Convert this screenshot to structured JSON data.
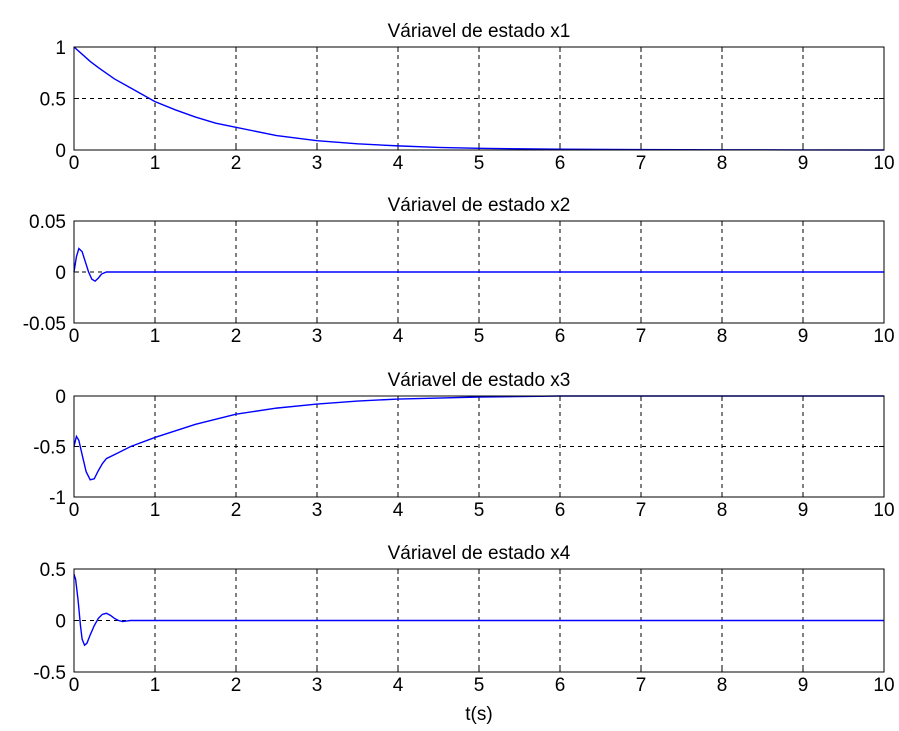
{
  "chart_data": [
    {
      "type": "line",
      "title": "Váriavel de estado x1",
      "xlim": [
        0,
        10
      ],
      "ylim": [
        0,
        1
      ],
      "xticks": [
        "0",
        "1",
        "2",
        "3",
        "4",
        "5",
        "6",
        "7",
        "8",
        "9",
        "10"
      ],
      "yticks": [
        "0",
        "0.5",
        "1"
      ],
      "ytick_values": [
        0,
        0.5,
        1
      ],
      "grid": true,
      "series": [
        {
          "color": "#0000ff",
          "x": [
            0,
            0.1,
            0.2,
            0.3,
            0.5,
            0.75,
            1,
            1.25,
            1.5,
            1.75,
            2,
            2.5,
            3,
            3.5,
            4,
            4.5,
            5,
            6,
            7,
            8,
            9,
            10
          ],
          "y": [
            1.0,
            0.93,
            0.86,
            0.8,
            0.69,
            0.58,
            0.47,
            0.39,
            0.32,
            0.26,
            0.22,
            0.14,
            0.09,
            0.06,
            0.04,
            0.025,
            0.016,
            0.008,
            0.004,
            0.002,
            0.001,
            0.0
          ]
        }
      ]
    },
    {
      "type": "line",
      "title": "Váriavel de estado x2",
      "xlim": [
        0,
        10
      ],
      "ylim": [
        -0.05,
        0.05
      ],
      "xticks": [
        "0",
        "1",
        "2",
        "3",
        "4",
        "5",
        "6",
        "7",
        "8",
        "9",
        "10"
      ],
      "yticks": [
        "-0.05",
        "0",
        "0.05"
      ],
      "ytick_values": [
        -0.05,
        0,
        0.05
      ],
      "grid": true,
      "series": [
        {
          "color": "#0000ff",
          "x": [
            0,
            0.03,
            0.06,
            0.1,
            0.14,
            0.18,
            0.22,
            0.26,
            0.3,
            0.34,
            0.4,
            0.5,
            1,
            2,
            3,
            4,
            5,
            6,
            7,
            8,
            9,
            10
          ],
          "y": [
            0.0,
            0.015,
            0.023,
            0.02,
            0.01,
            0.0,
            -0.007,
            -0.009,
            -0.006,
            -0.002,
            0.0,
            0.0,
            0.0,
            0.0,
            0.0,
            0.0,
            0.0,
            0.0,
            0.0,
            0.0,
            0.0,
            0.0
          ]
        }
      ]
    },
    {
      "type": "line",
      "title": "Váriavel de estado x3",
      "xlim": [
        0,
        10
      ],
      "ylim": [
        -1,
        0
      ],
      "xticks": [
        "0",
        "1",
        "2",
        "3",
        "4",
        "5",
        "6",
        "7",
        "8",
        "9",
        "10"
      ],
      "yticks": [
        "-1",
        "-0.5",
        "0"
      ],
      "ytick_values": [
        -1,
        -0.5,
        0
      ],
      "grid": true,
      "series": [
        {
          "color": "#0000ff",
          "x": [
            0,
            0.03,
            0.06,
            0.1,
            0.15,
            0.2,
            0.25,
            0.3,
            0.35,
            0.4,
            0.5,
            0.7,
            1,
            1.5,
            2,
            2.5,
            3,
            3.5,
            4,
            4.5,
            5,
            6,
            7,
            8,
            9,
            10
          ],
          "y": [
            -0.5,
            -0.4,
            -0.44,
            -0.58,
            -0.75,
            -0.83,
            -0.82,
            -0.74,
            -0.67,
            -0.62,
            -0.58,
            -0.5,
            -0.41,
            -0.28,
            -0.18,
            -0.12,
            -0.08,
            -0.05,
            -0.03,
            -0.02,
            -0.01,
            0.0,
            0.0,
            0.0,
            0.0,
            0.0
          ]
        }
      ]
    },
    {
      "type": "line",
      "title": "Váriavel de estado x4",
      "xlim": [
        0,
        10
      ],
      "ylim": [
        -0.5,
        0.5
      ],
      "xticks": [
        "0",
        "1",
        "2",
        "3",
        "4",
        "5",
        "6",
        "7",
        "8",
        "9",
        "10"
      ],
      "yticks": [
        "-0.5",
        "0",
        "0.5"
      ],
      "ytick_values": [
        -0.5,
        0,
        0.5
      ],
      "grid": true,
      "xlabel": "t(s)",
      "series": [
        {
          "color": "#0000ff",
          "x": [
            0,
            0.02,
            0.05,
            0.08,
            0.1,
            0.13,
            0.16,
            0.2,
            0.25,
            0.3,
            0.35,
            0.4,
            0.45,
            0.5,
            0.55,
            0.6,
            0.7,
            0.8,
            1,
            2,
            3,
            4,
            5,
            6,
            7,
            8,
            9,
            10
          ],
          "y": [
            0.45,
            0.4,
            0.2,
            -0.05,
            -0.18,
            -0.24,
            -0.22,
            -0.14,
            -0.05,
            0.02,
            0.06,
            0.07,
            0.05,
            0.02,
            0.0,
            -0.01,
            0.0,
            0.0,
            0.0,
            0.0,
            0.0,
            0.0,
            0.0,
            0.0,
            0.0,
            0.0,
            0.0,
            0.0
          ]
        }
      ]
    }
  ]
}
